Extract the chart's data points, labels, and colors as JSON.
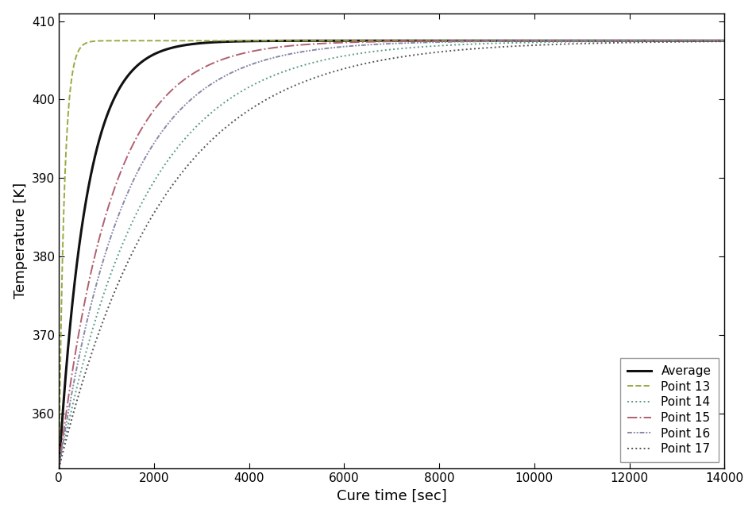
{
  "title": "",
  "xlabel": "Cure time [sec]",
  "ylabel": "Temperature [K]",
  "xlim": [
    0,
    14000
  ],
  "ylim": [
    353,
    411
  ],
  "yticks": [
    360,
    370,
    380,
    390,
    400,
    410
  ],
  "xticks": [
    0,
    2000,
    4000,
    6000,
    8000,
    10000,
    12000,
    14000
  ],
  "T_start": 353.0,
  "T_end": 407.5,
  "series": [
    {
      "label": "Average",
      "color": "#111111",
      "linestyle": "solid",
      "lw": 2.2,
      "tau": 580
    },
    {
      "label": "Point 13",
      "color": "#9aaa40",
      "linestyle": "dashed",
      "lw": 1.4,
      "tau": 110
    },
    {
      "label": "Point 14",
      "color": "#5a9a88",
      "linestyle": "dotted",
      "lw": 1.4,
      "tau": 1800
    },
    {
      "label": "Point 15",
      "color": "#b06070",
      "linestyle": "dashdot",
      "lw": 1.4,
      "tau": 1100
    },
    {
      "label": "Point 16",
      "color": "#8888aa",
      "linestyle": "dashdotdotted",
      "lw": 1.4,
      "tau": 1400
    },
    {
      "label": "Point 17",
      "color": "#555555",
      "linestyle": "dotted",
      "lw": 1.4,
      "tau": 2200
    }
  ],
  "legend_loc": "lower right",
  "background_color": "#ffffff",
  "grid": false
}
